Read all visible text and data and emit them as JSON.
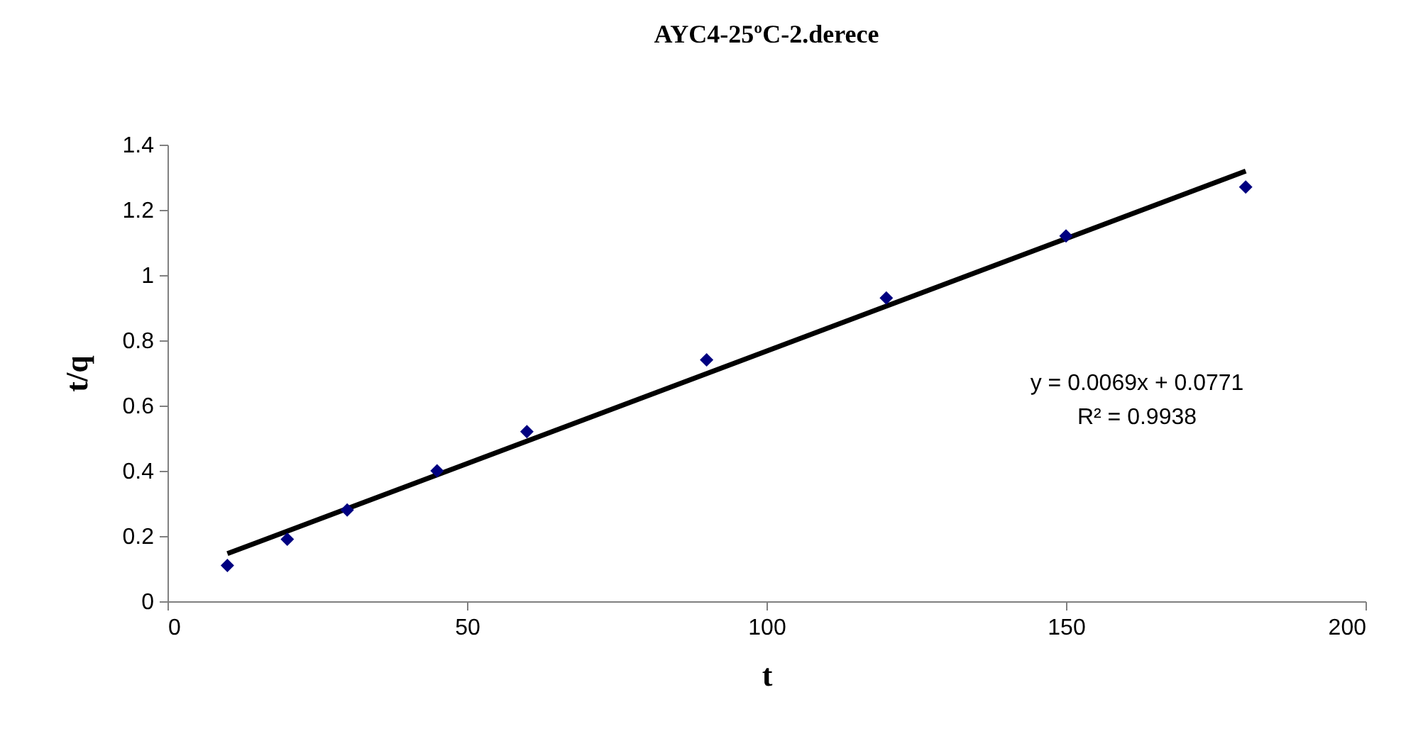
{
  "chart_data": {
    "type": "scatter",
    "title": "AYC4-25ºC-2.derece",
    "xlabel": "t",
    "ylabel": "t/q",
    "x": [
      10,
      20,
      30,
      45,
      60,
      90,
      120,
      150,
      180
    ],
    "series": [
      {
        "type": "line",
        "color": "#000000",
        "x": [
          10,
          180
        ],
        "values": [
          0.146,
          1.319
        ]
      },
      {
        "marker": "diamond",
        "color": "#000080",
        "values": [
          0.11,
          0.19,
          0.28,
          0.4,
          0.52,
          0.74,
          0.93,
          1.12,
          1.27
        ]
      }
    ],
    "annotations": [
      "y = 0.0069x + 0.0771",
      "R² = 0.9938"
    ],
    "xlim": [
      0,
      200
    ],
    "xticks": [
      0,
      50,
      100,
      150,
      200
    ],
    "ylim": [
      0,
      1.4
    ],
    "yticks": [
      0,
      0.2,
      0.4,
      0.6,
      0.8,
      1,
      1.2,
      1.4
    ],
    "grid": false
  }
}
